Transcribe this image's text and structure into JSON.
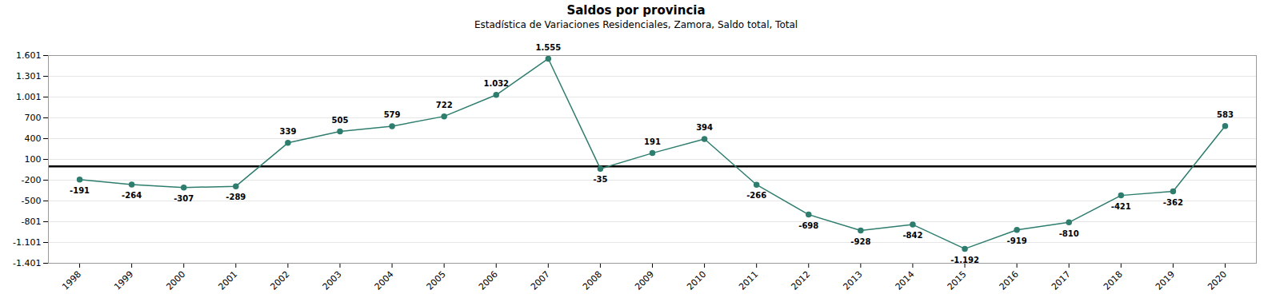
{
  "chart_data": {
    "type": "line",
    "title": "Saldos por provincia",
    "subtitle": "Estadística de Variaciones Residenciales, Zamora, Saldo total, Total",
    "x": [
      1998,
      1999,
      2000,
      2001,
      2002,
      2003,
      2004,
      2005,
      2006,
      2007,
      2008,
      2009,
      2010,
      2011,
      2012,
      2013,
      2014,
      2015,
      2016,
      2017,
      2018,
      2019,
      2020
    ],
    "values": [
      -191,
      -264,
      -307,
      -289,
      339,
      505,
      579,
      722,
      1032,
      1555,
      -35,
      191,
      394,
      -266,
      -698,
      -928,
      -842,
      -1192,
      -919,
      -810,
      -421,
      -362,
      583
    ],
    "value_labels": [
      "-191",
      "-264",
      "-307",
      "-289",
      "339",
      "505",
      "579",
      "722",
      "1.032",
      "1.555",
      "-35",
      "191",
      "394",
      "-266",
      "-698",
      "-928",
      "-842",
      "-1.192",
      "-919",
      "-810",
      "-421",
      "-362",
      "583"
    ],
    "color": "#2e7d6e",
    "marker": "circle",
    "data_labels": true,
    "grid": true,
    "xlim": [
      1997.4,
      2020.6
    ],
    "xticks": [
      1998,
      1999,
      2000,
      2001,
      2002,
      2003,
      2004,
      2005,
      2006,
      2007,
      2008,
      2009,
      2010,
      2011,
      2012,
      2013,
      2014,
      2015,
      2016,
      2017,
      2018,
      2019,
      2020
    ],
    "ylim": [
      -1401,
      1601
    ],
    "yticks": [
      {
        "value": -1401,
        "label": "-1.401"
      },
      {
        "value": -1101,
        "label": "-1.101"
      },
      -801,
      -500,
      -200,
      100,
      400,
      700,
      {
        "value": 1001,
        "label": "1.001"
      },
      {
        "value": 1301,
        "label": "1.301"
      },
      {
        "value": 1601,
        "label": "1.601"
      }
    ]
  }
}
